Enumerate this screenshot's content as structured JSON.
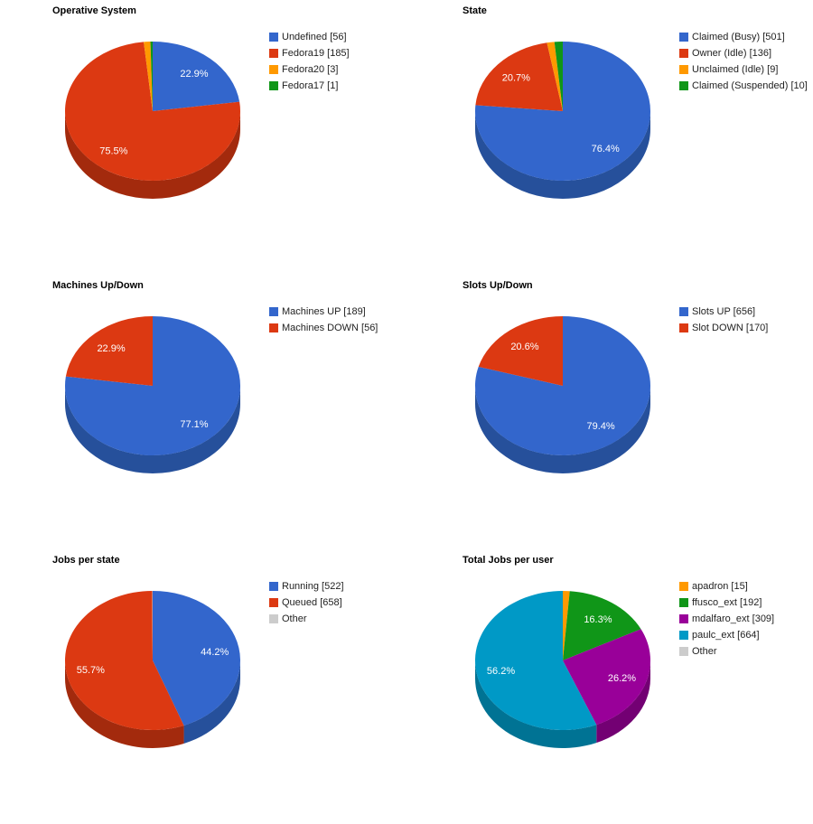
{
  "chart_data": [
    {
      "type": "pie",
      "title": "Operative System",
      "legend_position": "right",
      "slices": [
        {
          "label": "Undefined [56]",
          "value": 56,
          "color": "#3366cc",
          "side": "#26509b",
          "pct_label": "22.9%"
        },
        {
          "label": "Fedora19 [185]",
          "value": 185,
          "color": "#dc3912",
          "side": "#a32a0d",
          "pct_label": "75.5%"
        },
        {
          "label": "Fedora20 [3]",
          "value": 3,
          "color": "#ff9900",
          "side": "#bf7300",
          "pct_label": ""
        },
        {
          "label": "Fedora17 [1]",
          "value": 1,
          "color": "#109618",
          "side": "#0c7012",
          "pct_label": ""
        }
      ]
    },
    {
      "type": "pie",
      "title": "State",
      "legend_position": "right",
      "slices": [
        {
          "label": "Claimed (Busy) [501]",
          "value": 501,
          "color": "#3366cc",
          "side": "#26509b",
          "pct_label": "76.4%"
        },
        {
          "label": "Owner (Idle) [136]",
          "value": 136,
          "color": "#dc3912",
          "side": "#a32a0d",
          "pct_label": "20.7%"
        },
        {
          "label": "Unclaimed (Idle) [9]",
          "value": 9,
          "color": "#ff9900",
          "side": "#bf7300",
          "pct_label": ""
        },
        {
          "label": "Claimed (Suspended) [10]",
          "value": 10,
          "color": "#109618",
          "side": "#0c7012",
          "pct_label": ""
        }
      ]
    },
    {
      "type": "pie",
      "title": "Machines Up/Down",
      "legend_position": "right",
      "slices": [
        {
          "label": "Machines UP [189]",
          "value": 189,
          "color": "#3366cc",
          "side": "#26509b",
          "pct_label": "77.1%"
        },
        {
          "label": "Machines DOWN [56]",
          "value": 56,
          "color": "#dc3912",
          "side": "#a32a0d",
          "pct_label": "22.9%"
        }
      ]
    },
    {
      "type": "pie",
      "title": "Slots Up/Down",
      "legend_position": "right",
      "slices": [
        {
          "label": "Slots UP [656]",
          "value": 656,
          "color": "#3366cc",
          "side": "#26509b",
          "pct_label": "79.4%"
        },
        {
          "label": "Slot DOWN [170]",
          "value": 170,
          "color": "#dc3912",
          "side": "#a32a0d",
          "pct_label": "20.6%"
        }
      ]
    },
    {
      "type": "pie",
      "title": "Jobs per state",
      "legend_position": "right",
      "slices": [
        {
          "label": "Running [522]",
          "value": 522,
          "color": "#3366cc",
          "side": "#26509b",
          "pct_label": "44.2%"
        },
        {
          "label": "Queued [658]",
          "value": 658,
          "color": "#dc3912",
          "side": "#a32a0d",
          "pct_label": "55.7%"
        },
        {
          "label": "Other",
          "value": 1,
          "color": "#cccccc",
          "side": "#999999",
          "pct_label": ""
        }
      ]
    },
    {
      "type": "pie",
      "title": "Total Jobs per user",
      "legend_position": "right",
      "slices": [
        {
          "label": "apadron [15]",
          "value": 15,
          "color": "#ff9900",
          "side": "#bf7300",
          "pct_label": ""
        },
        {
          "label": "ffusco_ext [192]",
          "value": 192,
          "color": "#109618",
          "side": "#0c7012",
          "pct_label": "16.3%"
        },
        {
          "label": "mdalfaro_ext [309]",
          "value": 309,
          "color": "#990099",
          "side": "#730073",
          "pct_label": "26.2%"
        },
        {
          "label": "paulc_ext [664]",
          "value": 664,
          "color": "#0099c6",
          "side": "#007394",
          "pct_label": "56.2%"
        },
        {
          "label": "Other",
          "value": 0,
          "color": "#cccccc",
          "side": "#999999",
          "pct_label": ""
        }
      ]
    }
  ]
}
